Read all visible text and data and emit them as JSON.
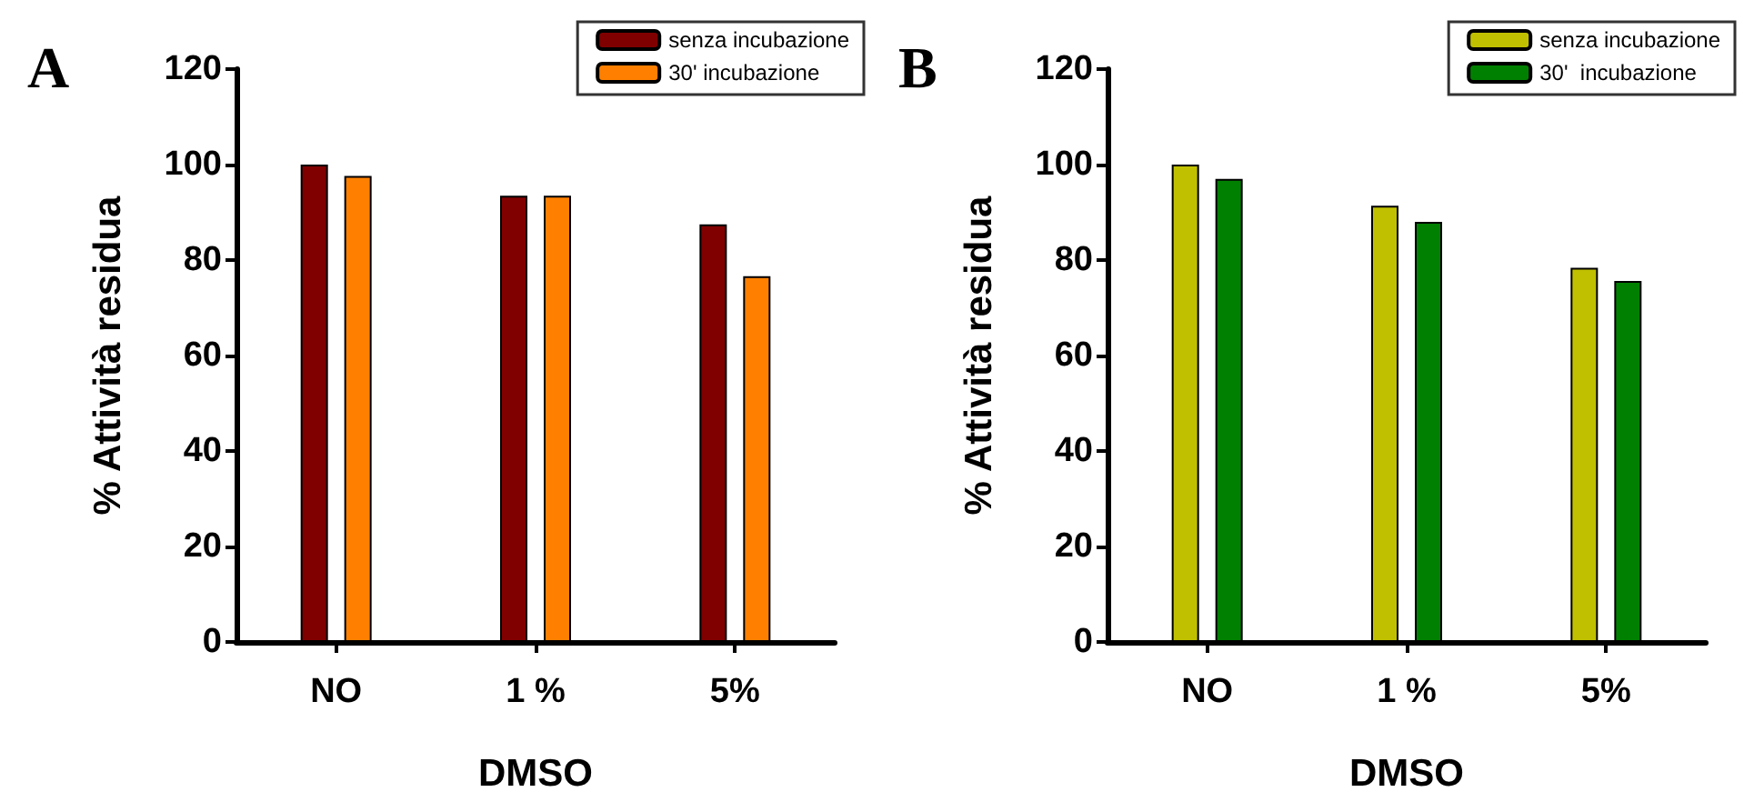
{
  "chart_data": [
    {
      "type": "bar",
      "title": "A",
      "xlabel": "DMSO",
      "ylabel": "% Attività residua",
      "categories": [
        "NO",
        "1 %",
        "5%"
      ],
      "series": [
        {
          "name": "senza incubazione",
          "color": "#800000",
          "values": [
            100,
            93.5,
            87.5
          ]
        },
        {
          "name": "30' incubazione",
          "color": "#ff8000",
          "values": [
            97.6,
            93.5,
            76.6
          ]
        }
      ],
      "ylim": [
        0,
        120
      ],
      "yticks": [
        0,
        20,
        40,
        60,
        80,
        100,
        120
      ],
      "grid": false,
      "legend": "top right"
    },
    {
      "type": "bar",
      "title": "B",
      "xlabel": "DMSO",
      "ylabel": "% Attività residua",
      "categories": [
        "NO",
        "1 %",
        "5%"
      ],
      "series": [
        {
          "name": "senza incubazione",
          "color": "#c0c000",
          "values": [
            100,
            91.4,
            78.4
          ]
        },
        {
          "name": "30'  incubazione",
          "color": "#008000",
          "values": [
            97,
            88,
            75.6
          ]
        }
      ],
      "ylim": [
        0,
        120
      ],
      "yticks": [
        0,
        20,
        40,
        60,
        80,
        100,
        120
      ],
      "grid": false,
      "legend": "top right"
    }
  ]
}
